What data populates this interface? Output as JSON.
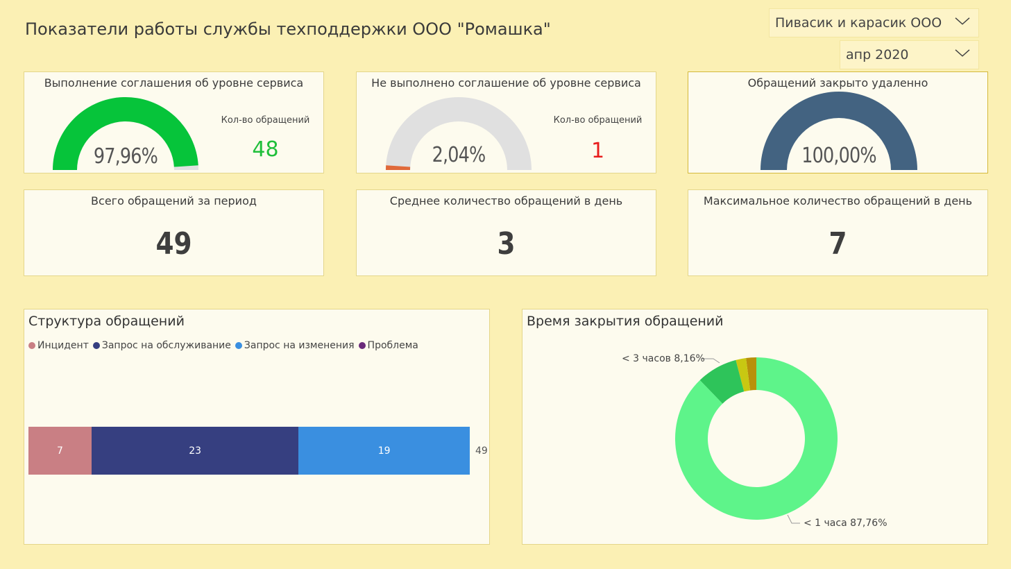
{
  "header": {
    "title": "Показатели работы службы техподдержки ООО \"Ромашка\"",
    "company_slicer": "Пивасик и карасик ООО",
    "period_slicer": "апр 2020"
  },
  "kpi": {
    "sla_met": {
      "title": "Выполнение соглашения об уровне сервиса",
      "percent_text": "97,96%",
      "percent": 97.96,
      "count_label": "Кол-во обращений",
      "count": "48",
      "color": "#06c43a",
      "count_color": "#1fbf3a"
    },
    "sla_failed": {
      "title": "Не выполнено соглашение об уровне сервиса",
      "percent_text": "2,04%",
      "percent": 2.04,
      "count_label": "Кол-во обращений",
      "count": "1",
      "color": "#e0693a",
      "count_color": "#e81c1c"
    },
    "remote": {
      "title": "Обращений закрыто удаленно",
      "percent_text": "100,00%",
      "percent": 100,
      "color": "#436381"
    },
    "total": {
      "title": "Всего обращений за период",
      "value": "49"
    },
    "avg_per_day": {
      "title": "Среднее количество обращений в день",
      "value": "3"
    },
    "max_per_day": {
      "title": "Максимальное количество обращений в день",
      "value": "7"
    }
  },
  "structure": {
    "title": "Структура обращений",
    "legend": [
      {
        "label": "Инцидент",
        "color": "#c97f84"
      },
      {
        "label": "Запрос на обслуживание",
        "color": "#363f80"
      },
      {
        "label": "Запрос на изменения",
        "color": "#3a8fe0"
      },
      {
        "label": "Проблема",
        "color": "#6a2a7a"
      }
    ],
    "total_label": "49"
  },
  "closing_time": {
    "title": "Время закрытия обращений",
    "label_3h": "< 3 часов 8,16%",
    "label_1h": "< 1 часа 87,76%"
  },
  "chart_data": [
    {
      "type": "bar",
      "orientation": "horizontal-stacked",
      "title": "Структура обращений",
      "categories": [
        ""
      ],
      "series": [
        {
          "name": "Инцидент",
          "values": [
            7
          ]
        },
        {
          "name": "Запрос на обслуживание",
          "values": [
            23
          ]
        },
        {
          "name": "Запрос на изменения",
          "values": [
            19
          ]
        },
        {
          "name": "Проблема",
          "values": [
            0
          ]
        }
      ],
      "total": 49,
      "legend": "top-left"
    },
    {
      "type": "pie",
      "style": "donut",
      "title": "Время закрытия обращений",
      "slices": [
        {
          "label": "< 1 часа",
          "value": 87.76,
          "color": "#5ef48a"
        },
        {
          "label": "< 3 часов",
          "value": 8.16,
          "color": "#2ec45a"
        },
        {
          "label": "",
          "value": 2.04,
          "color": "#c8c812"
        },
        {
          "label": "",
          "value": 2.04,
          "color": "#b8900a"
        }
      ]
    }
  ]
}
